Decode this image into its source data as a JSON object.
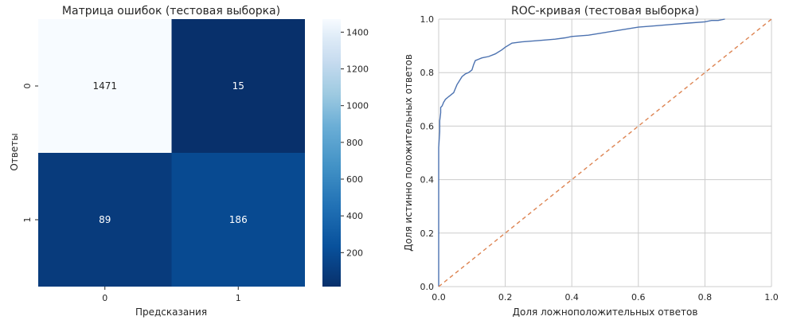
{
  "chart_data": [
    {
      "type": "heatmap",
      "title": "Матрица ошибок (тестовая выборка)",
      "xlabel": "Предсказания",
      "ylabel": "Ответы",
      "x_categories": [
        "0",
        "1"
      ],
      "y_categories": [
        "0",
        "1"
      ],
      "values": [
        [
          1471,
          15
        ],
        [
          89,
          186
        ]
      ],
      "colormap": "Blues",
      "colorbar": {
        "vmin": 15,
        "vmax": 1471,
        "ticks": [
          200,
          400,
          600,
          800,
          1000,
          1200,
          1400
        ]
      }
    },
    {
      "type": "line",
      "title": "ROC-кривая (тестовая выборка)",
      "xlabel": "Доля ложноположительных ответов",
      "ylabel": "Доля истинно положительных ответов",
      "xlim": [
        0.0,
        1.0
      ],
      "ylim": [
        0.0,
        1.0
      ],
      "x_ticks": [
        "0.0",
        "0.2",
        "0.4",
        "0.6",
        "0.8",
        "1.0"
      ],
      "y_ticks": [
        "0.0",
        "0.2",
        "0.4",
        "0.6",
        "0.8",
        "1.0"
      ],
      "grid": true,
      "series": [
        {
          "color": "#4c72b0",
          "style": "solid",
          "x": [
            0.0,
            0.0,
            0.003,
            0.003,
            0.006,
            0.006,
            0.01,
            0.012,
            0.015,
            0.018,
            0.02,
            0.025,
            0.03,
            0.035,
            0.04,
            0.045,
            0.05,
            0.055,
            0.06,
            0.065,
            0.07,
            0.08,
            0.09,
            0.1,
            0.105,
            0.11,
            0.12,
            0.13,
            0.15,
            0.17,
            0.19,
            0.2,
            0.22,
            0.25,
            0.3,
            0.35,
            0.38,
            0.4,
            0.45,
            0.5,
            0.55,
            0.6,
            0.65,
            0.7,
            0.75,
            0.8,
            0.82,
            0.84,
            0.86
          ],
          "y": [
            0.0,
            0.52,
            0.58,
            0.62,
            0.65,
            0.67,
            0.675,
            0.68,
            0.69,
            0.695,
            0.7,
            0.705,
            0.71,
            0.715,
            0.72,
            0.725,
            0.74,
            0.755,
            0.765,
            0.775,
            0.785,
            0.795,
            0.8,
            0.81,
            0.83,
            0.845,
            0.85,
            0.855,
            0.86,
            0.87,
            0.885,
            0.895,
            0.91,
            0.915,
            0.92,
            0.925,
            0.93,
            0.935,
            0.94,
            0.95,
            0.96,
            0.97,
            0.975,
            0.98,
            0.985,
            0.99,
            0.995,
            0.995,
            1.0
          ]
        },
        {
          "color": "#dd8452",
          "style": "dashed",
          "x": [
            0.0,
            1.0
          ],
          "y": [
            0.0,
            1.0
          ]
        }
      ]
    }
  ]
}
